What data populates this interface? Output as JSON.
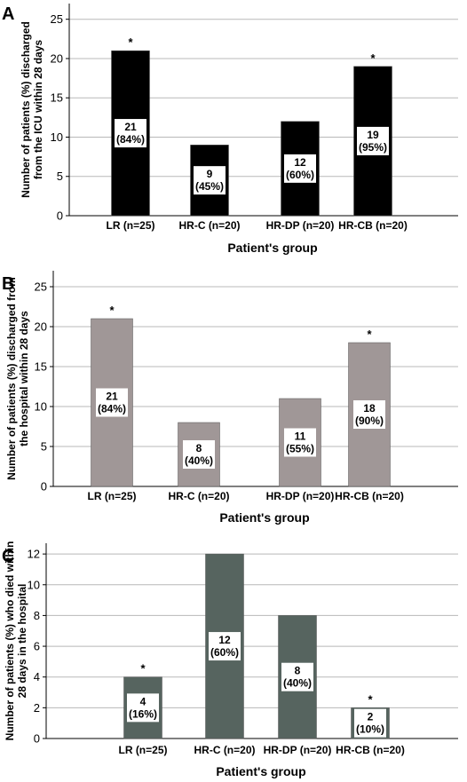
{
  "chart_data": [
    {
      "type": "bar",
      "panel": "A",
      "ylabel_lines": [
        "Number of patients (%) discharged",
        "from the ICU within 28 days"
      ],
      "xlabel": "Patient's group",
      "categories": [
        "LR (n=25)",
        "HR-C (n=20)",
        "HR-DP (n=20)",
        "HR-CB (n=20)"
      ],
      "values": [
        21,
        9,
        12,
        19
      ],
      "percent_labels": [
        "(84%)",
        "(45%)",
        "(60%)",
        "(95%)"
      ],
      "significant": [
        true,
        false,
        false,
        true
      ],
      "significance_marker": "*",
      "ylim": [
        0,
        27
      ],
      "yticks": [
        0,
        5,
        10,
        15,
        20,
        25
      ],
      "bar_color": "#000000",
      "grid": true
    },
    {
      "type": "bar",
      "panel": "B",
      "ylabel_lines": [
        "Number of patients (%) discharged from",
        "the hospital within 28 days"
      ],
      "xlabel": "Patient's group",
      "categories": [
        "LR (n=25)",
        "HR-C (n=20)",
        "HR-DP (n=20)",
        "HR-CB (n=20)"
      ],
      "values": [
        21,
        8,
        11,
        18
      ],
      "percent_labels": [
        "(84%)",
        "(40%)",
        "(55%)",
        "(90%)"
      ],
      "significant": [
        true,
        false,
        false,
        true
      ],
      "significance_marker": "*",
      "ylim": [
        0,
        27
      ],
      "yticks": [
        0,
        5,
        10,
        15,
        20,
        25
      ],
      "bar_color": "#a09797",
      "grid": true
    },
    {
      "type": "bar",
      "panel": "C",
      "ylabel_lines": [
        "Number of patients (%) who died within",
        "28 days in the hospital"
      ],
      "xlabel": "Patient's group",
      "categories": [
        "LR (n=25)",
        "HR-C (n=20)",
        "HR-DP (n=20)",
        "HR-CB (n=20)"
      ],
      "values": [
        4,
        12,
        8,
        2
      ],
      "percent_labels": [
        "(16%)",
        "(60%)",
        "(40%)",
        "(10%)"
      ],
      "significant": [
        true,
        false,
        false,
        true
      ],
      "significance_marker": "*",
      "ylim": [
        0,
        12.7
      ],
      "yticks": [
        0,
        2,
        4,
        6,
        8,
        10,
        12
      ],
      "bar_color": "#56645f",
      "grid": true
    }
  ]
}
